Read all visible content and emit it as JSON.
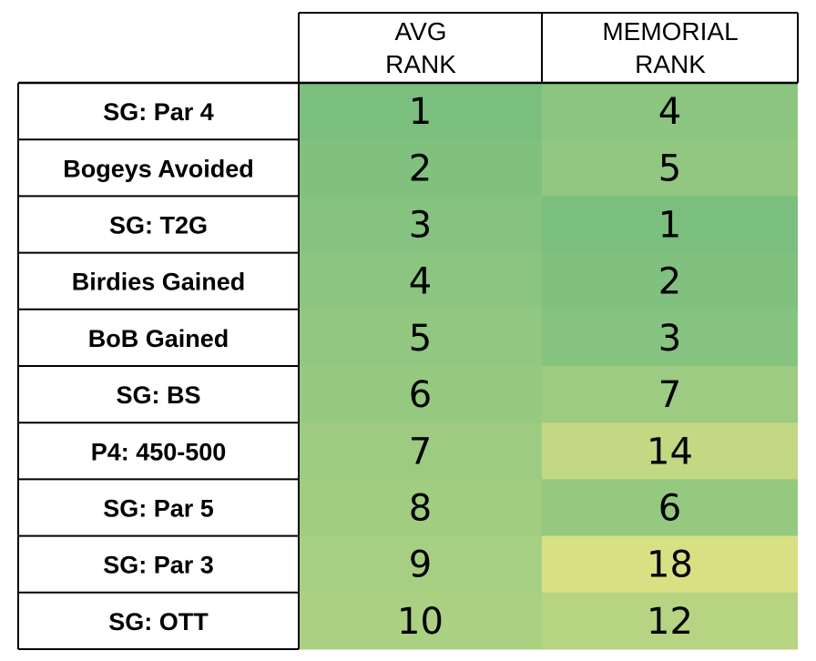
{
  "chart_data": {
    "type": "table",
    "columns": [
      "AVG RANK",
      "MEMORIAL RANK"
    ],
    "column_headers": [
      {
        "line1": "AVG",
        "line2": "RANK"
      },
      {
        "line1": "MEMORIAL",
        "line2": "RANK"
      }
    ],
    "rows": [
      {
        "label": "SG: Par 4",
        "avg_rank": 1,
        "memorial_rank": 4
      },
      {
        "label": "Bogeys Avoided",
        "avg_rank": 2,
        "memorial_rank": 5
      },
      {
        "label": "SG: T2G",
        "avg_rank": 3,
        "memorial_rank": 1
      },
      {
        "label": "Birdies Gained",
        "avg_rank": 4,
        "memorial_rank": 2
      },
      {
        "label": "BoB Gained",
        "avg_rank": 5,
        "memorial_rank": 3
      },
      {
        "label": "SG: BS",
        "avg_rank": 6,
        "memorial_rank": 7
      },
      {
        "label": "P4: 450-500",
        "avg_rank": 7,
        "memorial_rank": 14
      },
      {
        "label": "SG: Par 5",
        "avg_rank": 8,
        "memorial_rank": 6
      },
      {
        "label": "SG: Par 3",
        "avg_rank": 9,
        "memorial_rank": 18
      },
      {
        "label": "SG: OTT",
        "avg_rank": 10,
        "memorial_rank": 12
      }
    ],
    "color_scale": {
      "low": "#7bbf7f",
      "high": "#d8e084"
    }
  }
}
